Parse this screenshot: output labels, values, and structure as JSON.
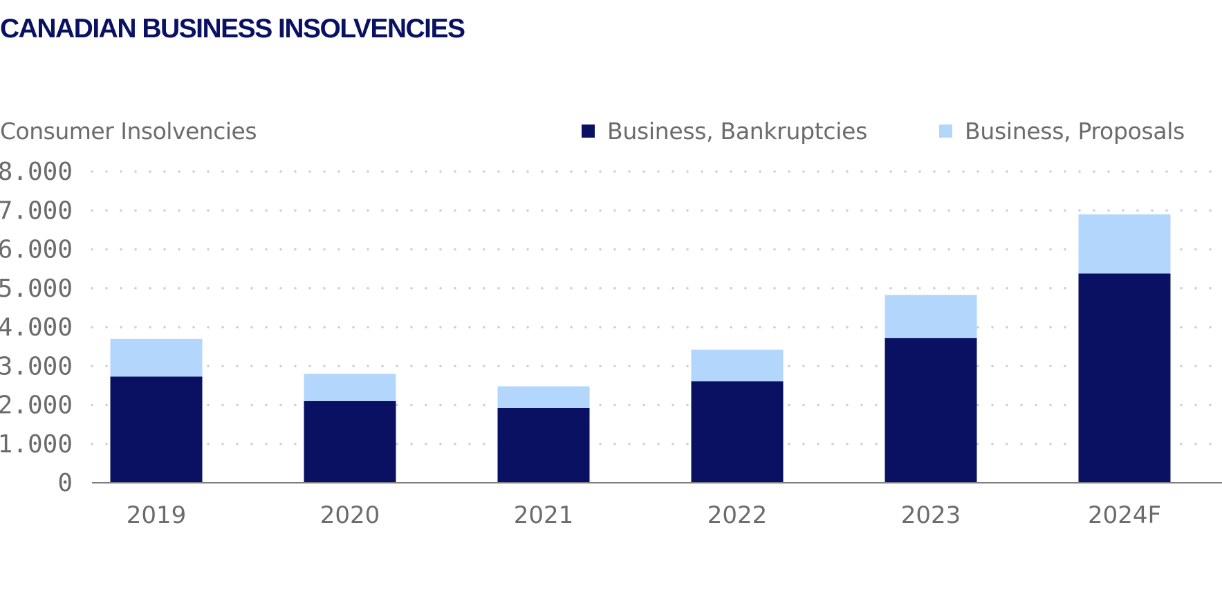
{
  "title": "CANADIAN BUSINESS INSOLVENCIES",
  "colors": {
    "title": "#0a1162",
    "bankruptcies": "#0a1162",
    "proposals": "#b3d7fc",
    "text": "#6b6b6b",
    "grid": "#cfcfcf",
    "axis": "#7f7f7f"
  },
  "chart_data": {
    "type": "bar",
    "stacked": true,
    "title": "CANADIAN BUSINESS INSOLVENCIES",
    "ylabel": "Consumer Insolvencies",
    "xlabel": "",
    "categories": [
      "2019",
      "2020",
      "2021",
      "2022",
      "2023",
      "2024F"
    ],
    "series": [
      {
        "name": "Business, Bankruptcies",
        "color": "#0a1162",
        "values": [
          2730,
          2100,
          1920,
          2610,
          3720,
          5380
        ]
      },
      {
        "name": "Business, Proposals",
        "color": "#b3d7fc",
        "values": [
          970,
          700,
          560,
          810,
          1110,
          1520
        ]
      }
    ],
    "ylim": [
      0,
      8000
    ],
    "yticks": [
      0,
      1000,
      2000,
      3000,
      4000,
      5000,
      6000,
      7000,
      8000
    ],
    "ytick_labels": [
      "0",
      "1.000",
      "2.000",
      "3.000",
      "4.000",
      "5.000",
      "6.000",
      "7.000",
      "8.000"
    ],
    "grid": "dotted-horizontal",
    "legend_position": "top-right"
  }
}
